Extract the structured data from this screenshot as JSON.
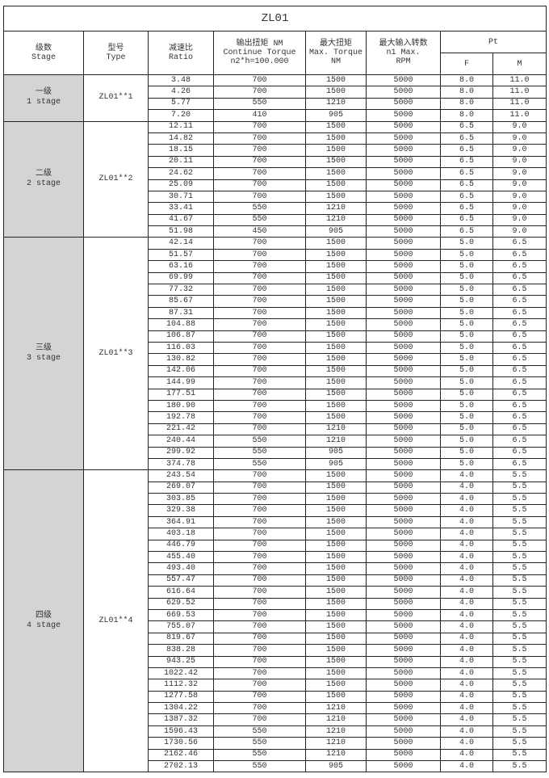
{
  "title": "ZL01",
  "headers": {
    "stage": [
      "级数",
      "Stage"
    ],
    "type": [
      "型号",
      "Type"
    ],
    "ratio": [
      "减速比",
      "Ratio"
    ],
    "continue_torque": [
      "输出扭矩 NM",
      "Continue Torque",
      "n2*h=100.000"
    ],
    "max_torque": [
      "最大扭矩",
      "Max. Torque",
      "NM"
    ],
    "max_speed": [
      "最大输入转数",
      "n1 Max.",
      "RPM"
    ],
    "pt": "Pt",
    "pt_f": "F",
    "pt_m": "M"
  },
  "groups": [
    {
      "stage_cn": "一级",
      "stage_en": "1 stage",
      "type": "ZL01**1",
      "rows": [
        [
          "3.48",
          "700",
          "1500",
          "5000",
          "8.0",
          "11.0"
        ],
        [
          "4.26",
          "700",
          "1500",
          "5000",
          "8.0",
          "11.0"
        ],
        [
          "5.77",
          "550",
          "1210",
          "5000",
          "8.0",
          "11.0"
        ],
        [
          "7.20",
          "410",
          "905",
          "5000",
          "8.0",
          "11.0"
        ]
      ]
    },
    {
      "stage_cn": "二级",
      "stage_en": "2 stage",
      "type": "ZL01**2",
      "rows": [
        [
          "12.11",
          "700",
          "1500",
          "5000",
          "6.5",
          "9.0"
        ],
        [
          "14.82",
          "700",
          "1500",
          "5000",
          "6.5",
          "9.0"
        ],
        [
          "18.15",
          "700",
          "1500",
          "5000",
          "6.5",
          "9.0"
        ],
        [
          "20.11",
          "700",
          "1500",
          "5000",
          "6.5",
          "9.0"
        ],
        [
          "24.62",
          "700",
          "1500",
          "5000",
          "6.5",
          "9.0"
        ],
        [
          "25.09",
          "700",
          "1500",
          "5000",
          "6.5",
          "9.0"
        ],
        [
          "30.71",
          "700",
          "1500",
          "5000",
          "6.5",
          "9.0"
        ],
        [
          "33.41",
          "550",
          "1210",
          "5000",
          "6.5",
          "9.0"
        ],
        [
          "41.67",
          "550",
          "1210",
          "5000",
          "6.5",
          "9.0"
        ],
        [
          "51.98",
          "450",
          "905",
          "5000",
          "6.5",
          "9.0"
        ]
      ]
    },
    {
      "stage_cn": "三级",
      "stage_en": "3 stage",
      "type": "ZL01**3",
      "rows": [
        [
          "42.14",
          "700",
          "1500",
          "5000",
          "5.0",
          "6.5"
        ],
        [
          "51.57",
          "700",
          "1500",
          "5000",
          "5.0",
          "6.5"
        ],
        [
          "63.16",
          "700",
          "1500",
          "5000",
          "5.0",
          "6.5"
        ],
        [
          "69.99",
          "700",
          "1500",
          "5000",
          "5.0",
          "6.5"
        ],
        [
          "77.32",
          "700",
          "1500",
          "5000",
          "5.0",
          "6.5"
        ],
        [
          "85.67",
          "700",
          "1500",
          "5000",
          "5.0",
          "6.5"
        ],
        [
          "87.31",
          "700",
          "1500",
          "5000",
          "5.0",
          "6.5"
        ],
        [
          "104.88",
          "700",
          "1500",
          "5000",
          "5.0",
          "6.5"
        ],
        [
          "106.87",
          "700",
          "1500",
          "5000",
          "5.0",
          "6.5"
        ],
        [
          "116.03",
          "700",
          "1500",
          "5000",
          "5.0",
          "6.5"
        ],
        [
          "130.82",
          "700",
          "1500",
          "5000",
          "5.0",
          "6.5"
        ],
        [
          "142.06",
          "700",
          "1500",
          "5000",
          "5.0",
          "6.5"
        ],
        [
          "144.99",
          "700",
          "1500",
          "5000",
          "5.0",
          "6.5"
        ],
        [
          "177.51",
          "700",
          "1500",
          "5000",
          "5.0",
          "6.5"
        ],
        [
          "180.90",
          "700",
          "1500",
          "5000",
          "5.0",
          "6.5"
        ],
        [
          "192.78",
          "700",
          "1500",
          "5000",
          "5.0",
          "6.5"
        ],
        [
          "221.42",
          "700",
          "1210",
          "5000",
          "5.0",
          "6.5"
        ],
        [
          "240.44",
          "550",
          "1210",
          "5000",
          "5.0",
          "6.5"
        ],
        [
          "299.92",
          "550",
          "905",
          "5000",
          "5.0",
          "6.5"
        ],
        [
          "374.78",
          "550",
          "905",
          "5000",
          "5.0",
          "6.5"
        ]
      ]
    },
    {
      "stage_cn": "四级",
      "stage_en": "4 stage",
      "type": "ZL01**4",
      "rows": [
        [
          "243.54",
          "700",
          "1500",
          "5000",
          "4.0",
          "5.5"
        ],
        [
          "269.07",
          "700",
          "1500",
          "5000",
          "4.0",
          "5.5"
        ],
        [
          "303.85",
          "700",
          "1500",
          "5000",
          "4.0",
          "5.5"
        ],
        [
          "329.38",
          "700",
          "1500",
          "5000",
          "4.0",
          "5.5"
        ],
        [
          "364.91",
          "700",
          "1500",
          "5000",
          "4.0",
          "5.5"
        ],
        [
          "403.18",
          "700",
          "1500",
          "5000",
          "4.0",
          "5.5"
        ],
        [
          "446.79",
          "700",
          "1500",
          "5000",
          "4.0",
          "5.5"
        ],
        [
          "455.40",
          "700",
          "1500",
          "5000",
          "4.0",
          "5.5"
        ],
        [
          "493.40",
          "700",
          "1500",
          "5000",
          "4.0",
          "5.5"
        ],
        [
          "557.47",
          "700",
          "1500",
          "5000",
          "4.0",
          "5.5"
        ],
        [
          "616.64",
          "700",
          "1500",
          "5000",
          "4.0",
          "5.5"
        ],
        [
          "629.52",
          "700",
          "1500",
          "5000",
          "4.0",
          "5.5"
        ],
        [
          "669.53",
          "700",
          "1500",
          "5000",
          "4.0",
          "5.5"
        ],
        [
          "755.07",
          "700",
          "1500",
          "5000",
          "4.0",
          "5.5"
        ],
        [
          "819.67",
          "700",
          "1500",
          "5000",
          "4.0",
          "5.5"
        ],
        [
          "838.28",
          "700",
          "1500",
          "5000",
          "4.0",
          "5.5"
        ],
        [
          "943.25",
          "700",
          "1500",
          "5000",
          "4.0",
          "5.5"
        ],
        [
          "1022.42",
          "700",
          "1500",
          "5000",
          "4.0",
          "5.5"
        ],
        [
          "1112.32",
          "700",
          "1500",
          "5000",
          "4.0",
          "5.5"
        ],
        [
          "1277.58",
          "700",
          "1500",
          "5000",
          "4.0",
          "5.5"
        ],
        [
          "1304.22",
          "700",
          "1210",
          "5000",
          "4.0",
          "5.5"
        ],
        [
          "1387.32",
          "700",
          "1210",
          "5000",
          "4.0",
          "5.5"
        ],
        [
          "1596.43",
          "550",
          "1210",
          "5000",
          "4.0",
          "5.5"
        ],
        [
          "1730.56",
          "550",
          "1210",
          "5000",
          "4.0",
          "5.5"
        ],
        [
          "2162.46",
          "550",
          "1210",
          "5000",
          "4.0",
          "5.5"
        ],
        [
          "2702.13",
          "550",
          "905",
          "5000",
          "4.0",
          "5.5"
        ]
      ]
    }
  ]
}
